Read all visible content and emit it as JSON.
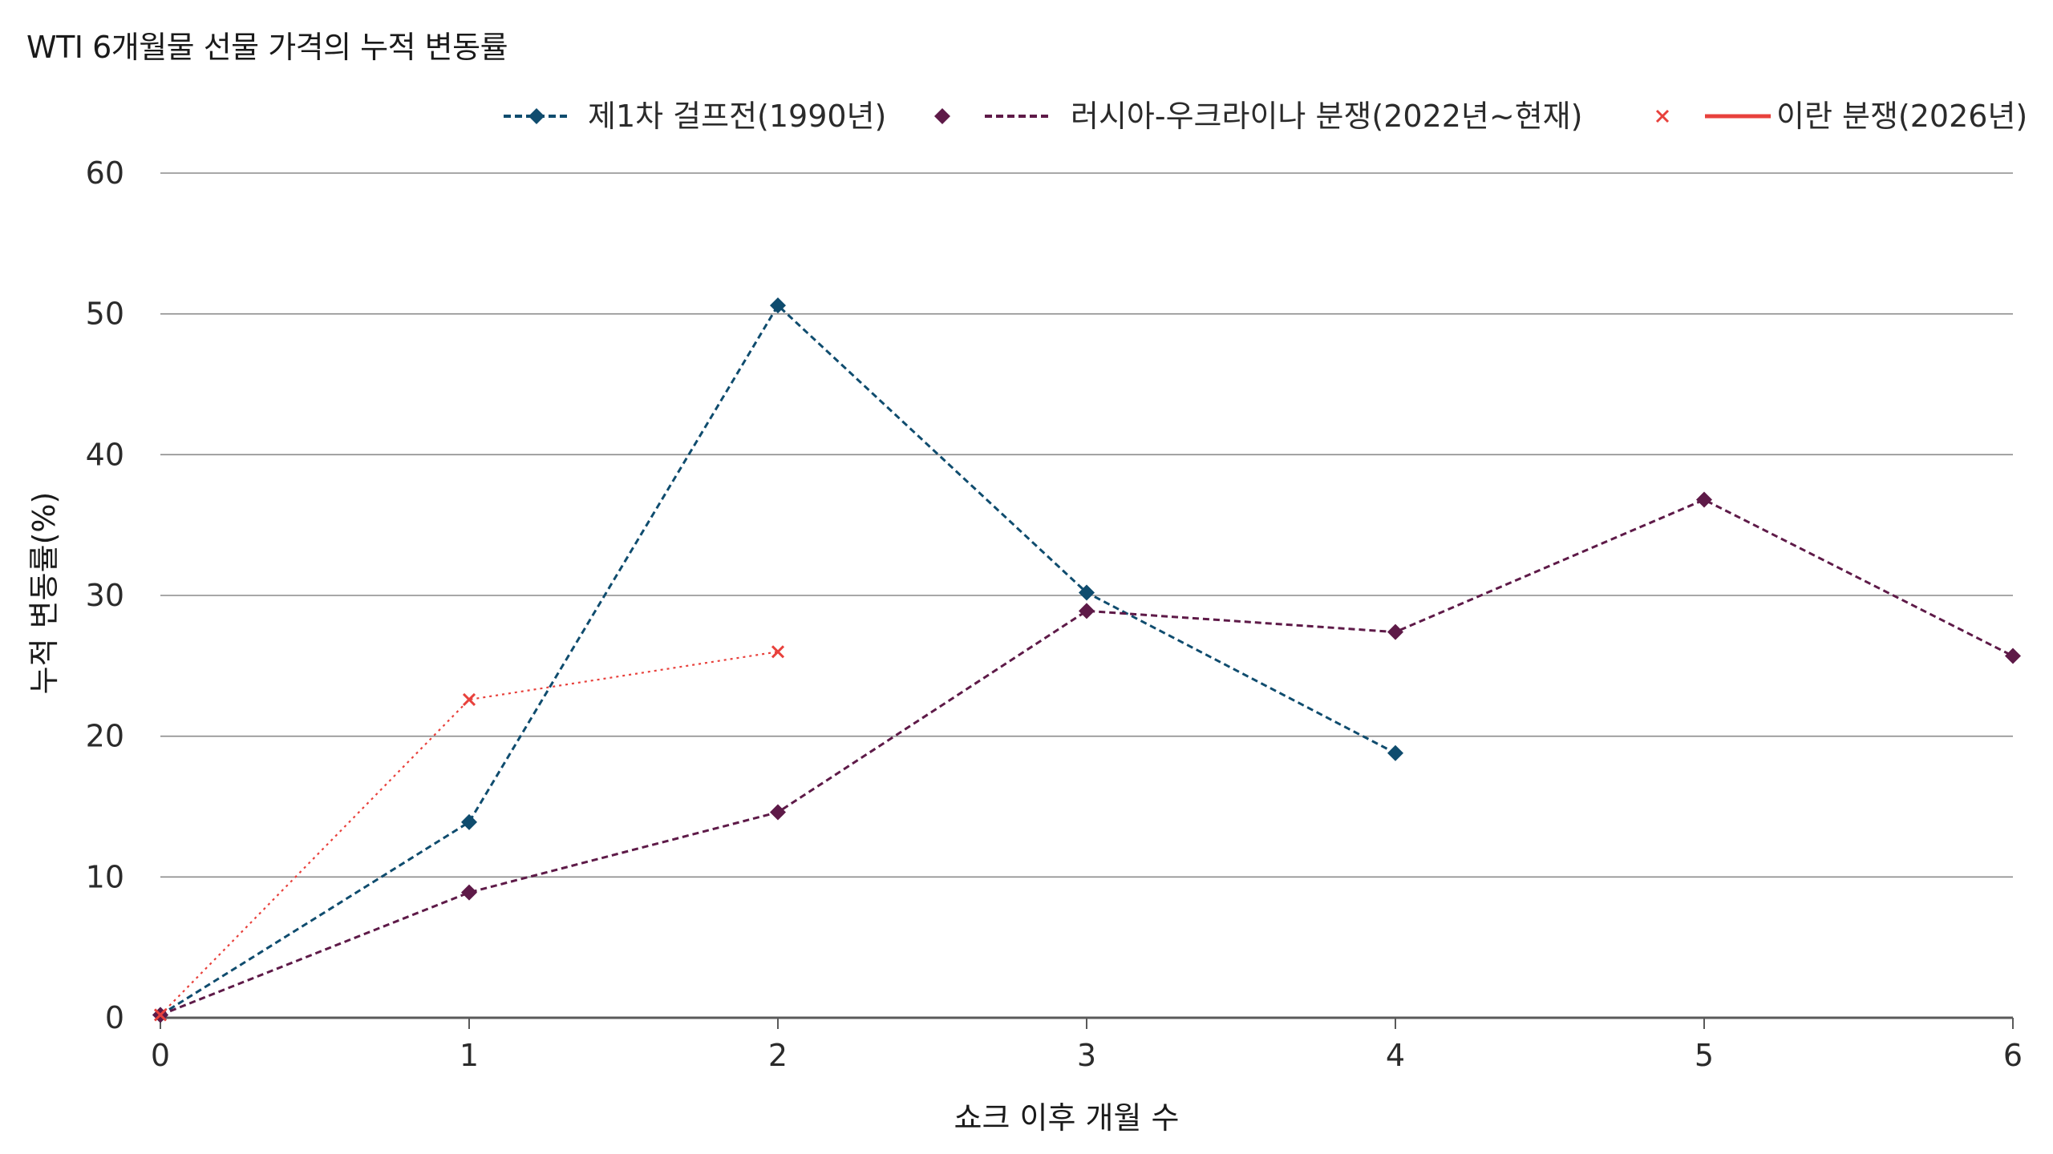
{
  "chart_data": {
    "type": "line",
    "title": "WTI 6개월물 선물 가격의 누적 변동률",
    "xlabel": "쇼크 이후 개월 수",
    "ylabel": "누적 변동률(%)",
    "x": [
      0,
      1,
      2,
      3,
      4,
      5,
      6
    ],
    "xlim": [
      0,
      6
    ],
    "ylim": [
      0,
      60
    ],
    "yticks": [
      0,
      10,
      20,
      30,
      40,
      50,
      60
    ],
    "grid": "horizontal",
    "legend_position": "top-right",
    "series": [
      {
        "name": "제1차 걸프전(1990년)",
        "x": [
          0,
          1,
          2,
          3,
          4
        ],
        "values": [
          0.2,
          13.9,
          50.6,
          30.2,
          18.8
        ],
        "color": "#0f4c6e",
        "marker": "diamond",
        "line_style": "dashed"
      },
      {
        "name": "러시아-우크라이나 분쟁(2022년~현재)",
        "x": [
          0,
          1,
          2,
          3,
          4,
          5,
          6
        ],
        "values": [
          0.2,
          8.9,
          14.6,
          28.9,
          27.4,
          36.8,
          25.7
        ],
        "color": "#5e1a48",
        "marker": "diamond",
        "line_style": "dashed"
      },
      {
        "name": "이란 분쟁(2026년)",
        "x": [
          0,
          1,
          2
        ],
        "values": [
          0.2,
          22.6,
          26.0
        ],
        "color": "#e8413c",
        "marker": "x",
        "line_style": "dotted"
      }
    ]
  }
}
